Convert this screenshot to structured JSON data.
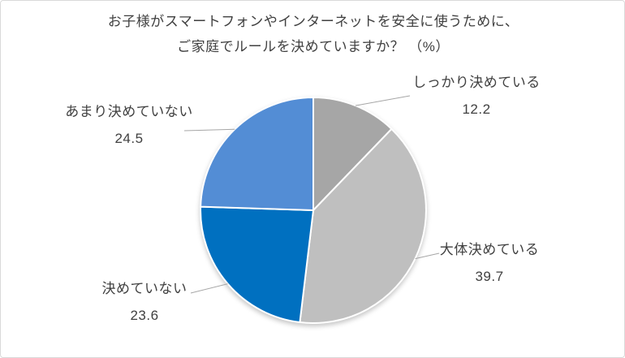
{
  "page": {
    "background_color": "#ffffff",
    "frame_border_color": "#d9d9d9",
    "text_color": "#404040"
  },
  "chart_data": {
    "type": "pie",
    "title_line1": "お子様がスマートフォンやインターネットを安全に使うために、",
    "title_line2": "ご家庭でルールを決めていますか？ （%）",
    "unit": "%",
    "start_angle_deg": 0,
    "direction": "clockwise",
    "legend": "none",
    "categories": [
      "しっかり決めている",
      "大体決めている",
      "決めていない",
      "あまり決めていない"
    ],
    "values": [
      12.2,
      39.7,
      23.6,
      24.5
    ],
    "slices": [
      {
        "label": "しっかり決めている",
        "value": 12.2,
        "color": "#a6a6a6"
      },
      {
        "label": "大体決めている",
        "value": 39.7,
        "color": "#bfbfbf"
      },
      {
        "label": "決めていない",
        "value": 23.6,
        "color": "#0070c0"
      },
      {
        "label": "あまり決めていない",
        "value": 24.5,
        "color": "#538dd5"
      }
    ],
    "leader_line_color": "#a6a6a6",
    "label_text_color": "#404040"
  }
}
